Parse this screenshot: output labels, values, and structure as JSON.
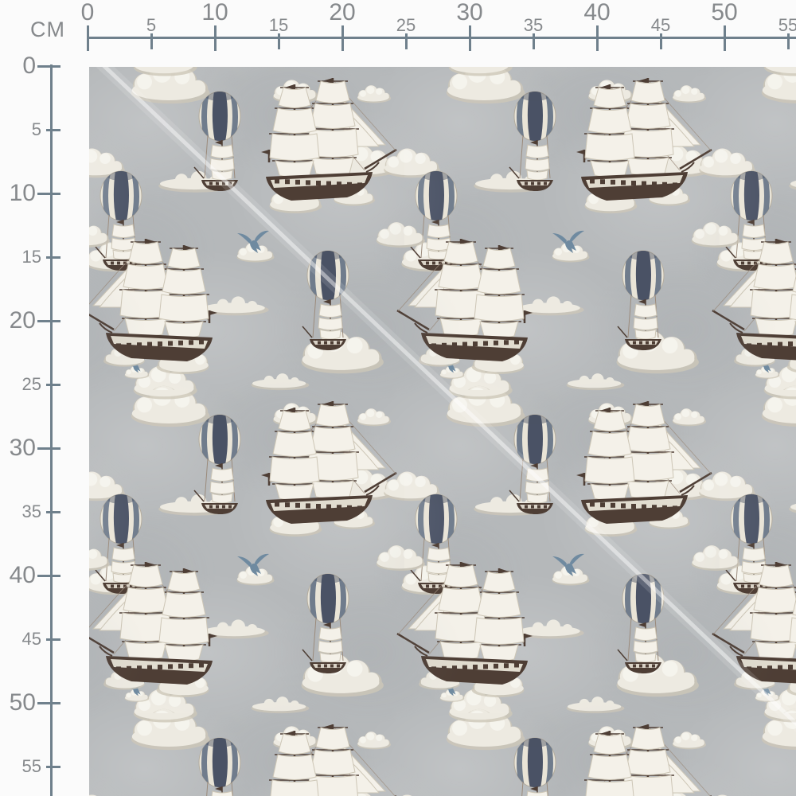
{
  "unit_label": "CM",
  "rulers": {
    "top": {
      "labels": [
        "0",
        "5",
        "10",
        "15",
        "20",
        "25",
        "30",
        "35",
        "40",
        "45",
        "50",
        "55"
      ]
    },
    "left": {
      "labels": [
        "0",
        "5",
        "10",
        "15",
        "20",
        "25",
        "30",
        "35",
        "40",
        "45",
        "50",
        "55"
      ]
    }
  },
  "fabric": {
    "description": "gray watercolor nautical pattern swatch",
    "motifs": [
      "sailing-ship",
      "balloon-airship",
      "cloud",
      "bird-on-cloud",
      "diagonal-seam-highlight"
    ]
  },
  "colors": {
    "pageBg": "#fbfbfb",
    "rulerLine": "#6f808c",
    "rulerText": "#86898c",
    "fabricBg": "#b5b8ba",
    "cloud": "#edeae1",
    "cloudShade": "#cdc7b8",
    "cloudHighlight": "#f7f5ef",
    "sail": "#f4f1e9",
    "sailShade": "#cdc6b6",
    "hull": "#4e3e35",
    "cream": "#e9e4d7",
    "balloonDark": "#4a5265",
    "balloonSlate": "#707c8c",
    "bird": "#6f8aa0",
    "rope": "#9a8a7b",
    "seam": "#ffffff"
  }
}
